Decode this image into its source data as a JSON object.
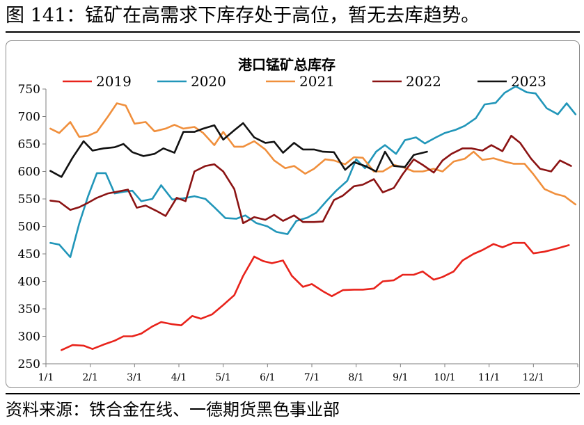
{
  "figure": {
    "title": "图 141：锰矿在高需求下库存处于高位，暂无去库趋势。",
    "source": "资料来源：铁合金在线、一德期货黑色事业部"
  },
  "chart_data": {
    "type": "line",
    "title": "港口锰矿总库存",
    "xlabel": "",
    "ylabel": "",
    "ylim": [
      250,
      750
    ],
    "yticks": [
      250,
      300,
      350,
      400,
      450,
      500,
      550,
      600,
      650,
      700,
      750
    ],
    "xlim": [
      0,
      12
    ],
    "xticks": [
      0,
      1,
      2,
      3,
      4,
      5,
      6,
      7,
      8,
      9,
      10,
      11
    ],
    "xtick_labels": [
      "1/1",
      "2/1",
      "3/1",
      "4/1",
      "5/1",
      "6/1",
      "7/1",
      "8/1",
      "9/1",
      "10/1",
      "11/1",
      "12/1"
    ],
    "grid": false,
    "legend_position": "top",
    "series": [
      {
        "name": "2019",
        "color": "#e8231b",
        "points": [
          [
            0.35,
            275
          ],
          [
            0.6,
            284
          ],
          [
            0.85,
            283
          ],
          [
            1.05,
            277
          ],
          [
            1.3,
            285
          ],
          [
            1.55,
            292
          ],
          [
            1.75,
            300
          ],
          [
            1.95,
            300
          ],
          [
            2.15,
            305
          ],
          [
            2.4,
            318
          ],
          [
            2.6,
            326
          ],
          [
            2.85,
            322
          ],
          [
            3.05,
            320
          ],
          [
            3.3,
            337
          ],
          [
            3.5,
            332
          ],
          [
            3.75,
            340
          ],
          [
            4.0,
            357
          ],
          [
            4.25,
            375
          ],
          [
            4.45,
            410
          ],
          [
            4.7,
            445
          ],
          [
            4.9,
            437
          ],
          [
            5.1,
            433
          ],
          [
            5.35,
            438
          ],
          [
            5.55,
            410
          ],
          [
            5.8,
            390
          ],
          [
            6.0,
            395
          ],
          [
            6.25,
            382
          ],
          [
            6.45,
            373
          ],
          [
            6.7,
            384
          ],
          [
            6.95,
            385
          ],
          [
            7.15,
            385
          ],
          [
            7.4,
            387
          ],
          [
            7.6,
            400
          ],
          [
            7.85,
            402
          ],
          [
            8.05,
            412
          ],
          [
            8.3,
            412
          ],
          [
            8.5,
            418
          ],
          [
            8.75,
            403
          ],
          [
            8.95,
            408
          ],
          [
            9.2,
            418
          ],
          [
            9.4,
            438
          ],
          [
            9.65,
            450
          ],
          [
            9.85,
            457
          ],
          [
            10.1,
            468
          ],
          [
            10.3,
            462
          ],
          [
            10.55,
            470
          ],
          [
            10.8,
            470
          ],
          [
            11.0,
            451
          ],
          [
            11.25,
            454
          ],
          [
            11.5,
            459
          ],
          [
            11.8,
            466
          ]
        ]
      },
      {
        "name": "2020",
        "color": "#2196b9",
        "points": [
          [
            0.1,
            470
          ],
          [
            0.3,
            467
          ],
          [
            0.55,
            444
          ],
          [
            0.75,
            505
          ],
          [
            0.95,
            555
          ],
          [
            1.15,
            597
          ],
          [
            1.35,
            597
          ],
          [
            1.55,
            560
          ],
          [
            1.75,
            563
          ],
          [
            1.95,
            565
          ],
          [
            2.15,
            546
          ],
          [
            2.4,
            550
          ],
          [
            2.6,
            575
          ],
          [
            2.85,
            549
          ],
          [
            3.1,
            551
          ],
          [
            3.35,
            555
          ],
          [
            3.6,
            550
          ],
          [
            3.8,
            535
          ],
          [
            4.05,
            515
          ],
          [
            4.3,
            514
          ],
          [
            4.5,
            520
          ],
          [
            4.75,
            506
          ],
          [
            5.0,
            500
          ],
          [
            5.2,
            490
          ],
          [
            5.45,
            486
          ],
          [
            5.65,
            510
          ],
          [
            5.9,
            516
          ],
          [
            6.1,
            525
          ],
          [
            6.35,
            548
          ],
          [
            6.55,
            565
          ],
          [
            6.8,
            583
          ],
          [
            7.0,
            622
          ],
          [
            7.2,
            606
          ],
          [
            7.45,
            636
          ],
          [
            7.65,
            648
          ],
          [
            7.9,
            632
          ],
          [
            8.1,
            657
          ],
          [
            8.35,
            662
          ],
          [
            8.55,
            651
          ],
          [
            8.8,
            662
          ],
          [
            9.0,
            670
          ],
          [
            9.25,
            676
          ],
          [
            9.45,
            683
          ],
          [
            9.7,
            697
          ],
          [
            9.9,
            722
          ],
          [
            10.15,
            725
          ],
          [
            10.35,
            743
          ],
          [
            10.6,
            755
          ],
          [
            10.85,
            744
          ],
          [
            11.05,
            742
          ],
          [
            11.3,
            715
          ],
          [
            11.55,
            704
          ],
          [
            11.75,
            724
          ],
          [
            11.95,
            704
          ]
        ]
      },
      {
        "name": "2021",
        "color": "#f08f3c",
        "points": [
          [
            0.1,
            678
          ],
          [
            0.3,
            670
          ],
          [
            0.55,
            690
          ],
          [
            0.75,
            663
          ],
          [
            0.95,
            665
          ],
          [
            1.15,
            672
          ],
          [
            1.4,
            700
          ],
          [
            1.6,
            724
          ],
          [
            1.8,
            720
          ],
          [
            2.0,
            687
          ],
          [
            2.25,
            690
          ],
          [
            2.45,
            673
          ],
          [
            2.7,
            678
          ],
          [
            2.9,
            685
          ],
          [
            3.1,
            678
          ],
          [
            3.35,
            681
          ],
          [
            3.55,
            670
          ],
          [
            3.8,
            648
          ],
          [
            4.0,
            672
          ],
          [
            4.25,
            645
          ],
          [
            4.45,
            645
          ],
          [
            4.7,
            655
          ],
          [
            4.95,
            640
          ],
          [
            5.15,
            620
          ],
          [
            5.4,
            606
          ],
          [
            5.6,
            610
          ],
          [
            5.85,
            596
          ],
          [
            6.05,
            605
          ],
          [
            6.3,
            622
          ],
          [
            6.5,
            620
          ],
          [
            6.75,
            613
          ],
          [
            6.95,
            626
          ],
          [
            7.15,
            625
          ],
          [
            7.4,
            600
          ],
          [
            7.6,
            600
          ],
          [
            7.85,
            612
          ],
          [
            8.05,
            608
          ],
          [
            8.3,
            600
          ],
          [
            8.5,
            600
          ],
          [
            8.75,
            605
          ],
          [
            8.95,
            600
          ],
          [
            9.2,
            618
          ],
          [
            9.45,
            623
          ],
          [
            9.65,
            636
          ],
          [
            9.85,
            621
          ],
          [
            10.1,
            624
          ],
          [
            10.35,
            618
          ],
          [
            10.55,
            614
          ],
          [
            10.8,
            614
          ],
          [
            11.0,
            595
          ],
          [
            11.25,
            568
          ],
          [
            11.5,
            559
          ],
          [
            11.7,
            555
          ],
          [
            11.95,
            540
          ]
        ]
      },
      {
        "name": "2022",
        "color": "#8b1313",
        "points": [
          [
            0.1,
            547
          ],
          [
            0.3,
            545
          ],
          [
            0.55,
            530
          ],
          [
            0.75,
            535
          ],
          [
            0.95,
            543
          ],
          [
            1.15,
            552
          ],
          [
            1.4,
            560
          ],
          [
            1.6,
            563
          ],
          [
            1.85,
            567
          ],
          [
            2.05,
            534
          ],
          [
            2.25,
            538
          ],
          [
            2.5,
            528
          ],
          [
            2.7,
            519
          ],
          [
            2.95,
            552
          ],
          [
            3.15,
            546
          ],
          [
            3.35,
            600
          ],
          [
            3.6,
            610
          ],
          [
            3.8,
            613
          ],
          [
            4.0,
            600
          ],
          [
            4.25,
            568
          ],
          [
            4.45,
            506
          ],
          [
            4.7,
            517
          ],
          [
            4.95,
            512
          ],
          [
            5.15,
            521
          ],
          [
            5.35,
            510
          ],
          [
            5.6,
            520
          ],
          [
            5.8,
            508
          ],
          [
            6.05,
            508
          ],
          [
            6.25,
            509
          ],
          [
            6.5,
            548
          ],
          [
            6.7,
            556
          ],
          [
            6.95,
            573
          ],
          [
            7.15,
            576
          ],
          [
            7.4,
            586
          ],
          [
            7.6,
            562
          ],
          [
            7.85,
            570
          ],
          [
            8.05,
            595
          ],
          [
            8.3,
            622
          ],
          [
            8.5,
            612
          ],
          [
            8.75,
            598
          ],
          [
            8.95,
            620
          ],
          [
            9.15,
            632
          ],
          [
            9.4,
            642
          ],
          [
            9.6,
            642
          ],
          [
            9.85,
            638
          ],
          [
            10.05,
            648
          ],
          [
            10.3,
            637
          ],
          [
            10.5,
            665
          ],
          [
            10.7,
            652
          ],
          [
            10.95,
            623
          ],
          [
            11.15,
            605
          ],
          [
            11.4,
            600
          ],
          [
            11.6,
            620
          ],
          [
            11.85,
            610
          ]
        ]
      },
      {
        "name": "2023",
        "color": "#111111",
        "points": [
          [
            0.1,
            601
          ],
          [
            0.35,
            590
          ],
          [
            0.6,
            625
          ],
          [
            0.85,
            655
          ],
          [
            1.05,
            638
          ],
          [
            1.3,
            642
          ],
          [
            1.55,
            644
          ],
          [
            1.75,
            650
          ],
          [
            1.95,
            635
          ],
          [
            2.2,
            628
          ],
          [
            2.45,
            632
          ],
          [
            2.65,
            642
          ],
          [
            2.9,
            634
          ],
          [
            3.1,
            672
          ],
          [
            3.35,
            672
          ],
          [
            3.55,
            678
          ],
          [
            3.8,
            684
          ],
          [
            4.0,
            658
          ],
          [
            4.25,
            675
          ],
          [
            4.45,
            688
          ],
          [
            4.7,
            662
          ],
          [
            4.95,
            652
          ],
          [
            5.15,
            654
          ],
          [
            5.35,
            634
          ],
          [
            5.6,
            652
          ],
          [
            5.8,
            640
          ],
          [
            6.05,
            640
          ],
          [
            6.25,
            636
          ],
          [
            6.5,
            635
          ],
          [
            6.75,
            603
          ],
          [
            6.95,
            617
          ],
          [
            7.2,
            610
          ],
          [
            7.45,
            600
          ],
          [
            7.65,
            636
          ],
          [
            7.85,
            610
          ],
          [
            8.1,
            608
          ],
          [
            8.3,
            630
          ],
          [
            8.6,
            636
          ]
        ]
      }
    ]
  }
}
